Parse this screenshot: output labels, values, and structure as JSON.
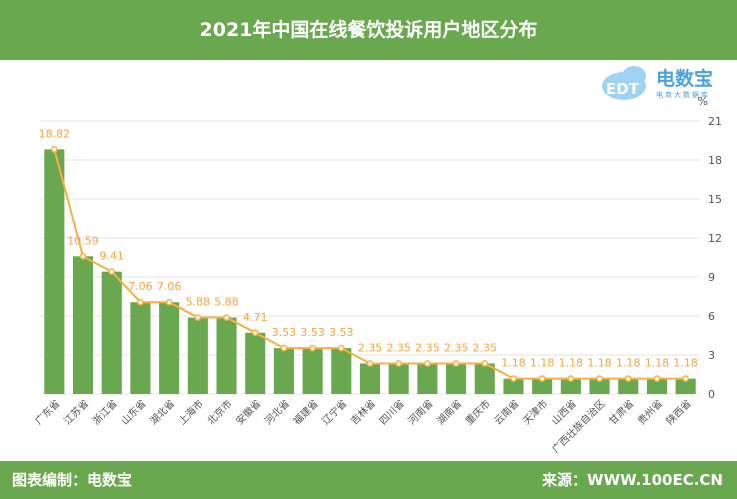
{
  "header": {
    "title": "2021年中国在线餐饮投诉用户地区分布"
  },
  "footer": {
    "left": "图表编制：电数宝",
    "right": "来源：WWW.100EC.CN"
  },
  "logo": {
    "text": "电数宝",
    "sub": "电商大数据库",
    "badge": "EDT"
  },
  "chart_data": {
    "type": "bar",
    "categories": [
      "广东省",
      "江苏省",
      "浙江省",
      "山东省",
      "湖北省",
      "上海市",
      "北京市",
      "安徽省",
      "河北省",
      "福建省",
      "辽宁省",
      "吉林省",
      "四川省",
      "河南省",
      "湖南省",
      "重庆市",
      "云南省",
      "天津市",
      "山西省",
      "广西壮族自治区",
      "甘肃省",
      "贵州省",
      "陕西省"
    ],
    "values": [
      18.82,
      10.59,
      9.41,
      7.06,
      7.06,
      5.88,
      5.88,
      4.71,
      3.53,
      3.53,
      3.53,
      2.35,
      2.35,
      2.35,
      2.35,
      2.35,
      1.18,
      1.18,
      1.18,
      1.18,
      1.18,
      1.18,
      1.18
    ],
    "value_labels": [
      "18.82",
      "10.59",
      "9.41",
      "7.06",
      "7.06",
      "5.88",
      "5.88",
      "4.71",
      "3.53",
      "3.53",
      "3.53",
      "2.35",
      "2.35",
      "2.35",
      "2.35",
      "2.35",
      "1.18",
      "1.18",
      "1.18",
      "1.18",
      "1.18",
      "1.18",
      "1.18"
    ],
    "ylabel": "%",
    "ylim": [
      0,
      21
    ],
    "yticks": [
      "0",
      "3",
      "6",
      "9",
      "12",
      "15",
      "18",
      "21"
    ],
    "y_axis_side": "right",
    "grid": true,
    "overlay_line": true,
    "colors": {
      "bar": "#6aa84f",
      "line": "#f6b042",
      "label": "#f6a53a",
      "grid": "#e6e6e6",
      "tick": "#555555"
    }
  }
}
